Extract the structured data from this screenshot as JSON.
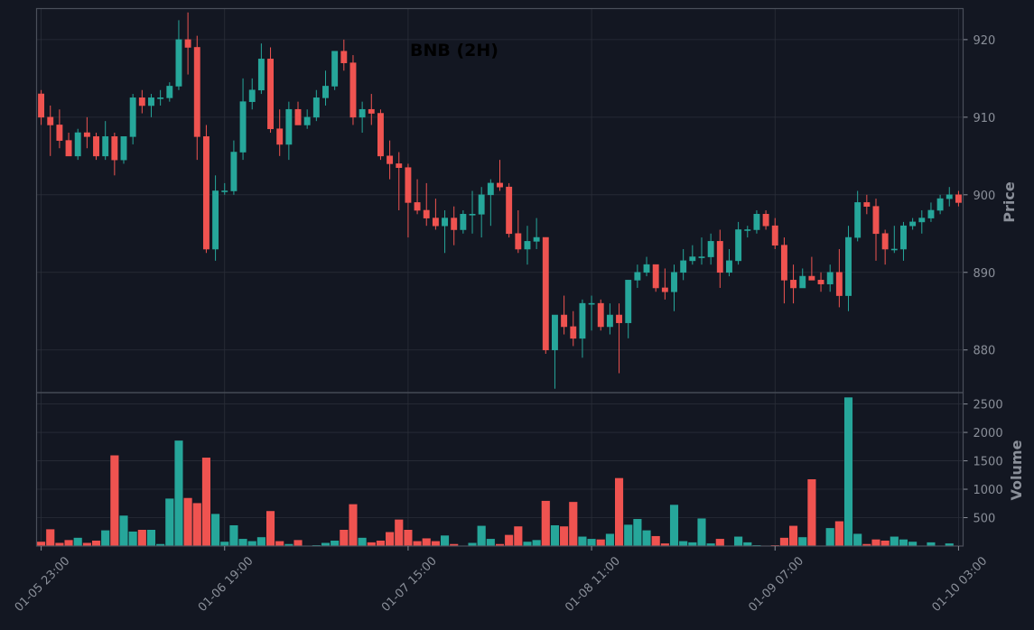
{
  "chart_data": [
    {
      "type": "candlestick",
      "title": "BNB (2H)",
      "ylabel": "Price",
      "ylim": [
        874.5,
        924
      ],
      "yticks": [
        880,
        890,
        900,
        910,
        920
      ],
      "x_range": [
        -0.5,
        100.5
      ],
      "xticks": [
        {
          "index": 0,
          "label": "01-05 23:00"
        },
        {
          "index": 20,
          "label": "01-06 19:00"
        },
        {
          "index": 40,
          "label": "01-07 15:00"
        },
        {
          "index": 60,
          "label": "01-08 11:00"
        },
        {
          "index": 80,
          "label": "01-09 07:00"
        },
        {
          "index": 100,
          "label": "01-10 03:00"
        }
      ],
      "colors": {
        "up": "#26a69a",
        "down": "#ef5350",
        "background": "#131722",
        "grid": "#2a2e39",
        "text": "#8a8f99"
      },
      "candles": [
        [
          913,
          913.5,
          909,
          910
        ],
        [
          910,
          911.5,
          905,
          909
        ],
        [
          909,
          911,
          906,
          907
        ],
        [
          907,
          908,
          905,
          905
        ],
        [
          905,
          908.5,
          904.5,
          908
        ],
        [
          908,
          910,
          906,
          907.5
        ],
        [
          907.5,
          908,
          904.5,
          905
        ],
        [
          905,
          909.5,
          904.5,
          907.5
        ],
        [
          907.5,
          908,
          902.5,
          904.5
        ],
        [
          904.5,
          907.5,
          904,
          907.5
        ],
        [
          907.5,
          913,
          906.5,
          912.5
        ],
        [
          912.5,
          913.5,
          910.5,
          911.5
        ],
        [
          911.5,
          913,
          910,
          912.5
        ],
        [
          912.5,
          913.5,
          911.5,
          912.5
        ],
        [
          912.5,
          914.5,
          912,
          914
        ],
        [
          914,
          922.5,
          913.5,
          920
        ],
        [
          920,
          923.5,
          915.5,
          919
        ],
        [
          919,
          920.5,
          904.5,
          907.5
        ],
        [
          907.5,
          909,
          892.5,
          893
        ],
        [
          893,
          902.5,
          891.5,
          900.5
        ],
        [
          900.5,
          901.5,
          900,
          900.5
        ],
        [
          900.5,
          907,
          900,
          905.5
        ],
        [
          905.5,
          915,
          904.5,
          912
        ],
        [
          912,
          915,
          911,
          913.5
        ],
        [
          913.5,
          919.5,
          913,
          917.5
        ],
        [
          917.5,
          919,
          908,
          908.5
        ],
        [
          908.5,
          911,
          905,
          906.5
        ],
        [
          906.5,
          912,
          904.5,
          911
        ],
        [
          911,
          912,
          909,
          909
        ],
        [
          909,
          911,
          908.5,
          910
        ],
        [
          910,
          913.5,
          909.5,
          912.5
        ],
        [
          912.5,
          916,
          911.5,
          914
        ],
        [
          914,
          918.5,
          913.5,
          918.5
        ],
        [
          918.5,
          920,
          916,
          917
        ],
        [
          917,
          918,
          909,
          910
        ],
        [
          910,
          912,
          908,
          911
        ],
        [
          911,
          913,
          909,
          910.5
        ],
        [
          910.5,
          911,
          904.5,
          905
        ],
        [
          905,
          907,
          902,
          904
        ],
        [
          904,
          905.5,
          898,
          903.5
        ],
        [
          903.5,
          904,
          894.5,
          899
        ],
        [
          899,
          902,
          897.5,
          898
        ],
        [
          898,
          901.5,
          896,
          897
        ],
        [
          897,
          899.5,
          895.5,
          896
        ],
        [
          896,
          898,
          892.5,
          897
        ],
        [
          897,
          898.5,
          893.5,
          895.5
        ],
        [
          895.5,
          898,
          895,
          897.5
        ],
        [
          897.5,
          900.5,
          895,
          897.5
        ],
        [
          897.5,
          901,
          894.5,
          900
        ],
        [
          900,
          902,
          896,
          901.5
        ],
        [
          901.5,
          904.5,
          900.5,
          901
        ],
        [
          901,
          901.5,
          894.5,
          895
        ],
        [
          895,
          898,
          892.5,
          893
        ],
        [
          893,
          896,
          891,
          894
        ],
        [
          894,
          897,
          893,
          894.5
        ],
        [
          894.5,
          894.5,
          879.5,
          880
        ],
        [
          880,
          884.5,
          875,
          884.5
        ],
        [
          884.5,
          887,
          882,
          883
        ],
        [
          883,
          885,
          880.5,
          881.5
        ],
        [
          881.5,
          886.5,
          879,
          886
        ],
        [
          886,
          887,
          882.5,
          886
        ],
        [
          886,
          886.5,
          882.5,
          883
        ],
        [
          883,
          886,
          882,
          884.5
        ],
        [
          884.5,
          886,
          877,
          883.5
        ],
        [
          883.5,
          889,
          881.5,
          889
        ],
        [
          889,
          891,
          888,
          890
        ],
        [
          890,
          892,
          889.5,
          891
        ],
        [
          891,
          891,
          887.5,
          888
        ],
        [
          888,
          890.5,
          886.5,
          887.5
        ],
        [
          887.5,
          891,
          885,
          890
        ],
        [
          890,
          893,
          889,
          891.5
        ],
        [
          891.5,
          893.5,
          891,
          892
        ],
        [
          892,
          894.5,
          891,
          892
        ],
        [
          892,
          895,
          891,
          894
        ],
        [
          894,
          895.5,
          888,
          890
        ],
        [
          890,
          893,
          889.5,
          891.5
        ],
        [
          891.5,
          896.5,
          891,
          895.5
        ],
        [
          895.5,
          896,
          894.5,
          895.5
        ],
        [
          895.5,
          898,
          895,
          897.5
        ],
        [
          897.5,
          898,
          895.5,
          896
        ],
        [
          896,
          897,
          893,
          893.5
        ],
        [
          893.5,
          894.5,
          886,
          889
        ],
        [
          889,
          891,
          886,
          888
        ],
        [
          888,
          890.5,
          888,
          889.5
        ],
        [
          889.5,
          892,
          889,
          889
        ],
        [
          889,
          890,
          887.5,
          888.5
        ],
        [
          888.5,
          891,
          887.5,
          890
        ],
        [
          890,
          893,
          885.5,
          887
        ],
        [
          887,
          896,
          885,
          894.5
        ],
        [
          894.5,
          900.5,
          894,
          899
        ],
        [
          899,
          900,
          897.5,
          898.5
        ],
        [
          898.5,
          899.5,
          891.5,
          895
        ],
        [
          895,
          895.5,
          891,
          893
        ],
        [
          893,
          896,
          892.5,
          893
        ],
        [
          893,
          896.5,
          891.5,
          896
        ],
        [
          896,
          897,
          895.5,
          896.5
        ],
        [
          896.5,
          898,
          895,
          897
        ],
        [
          897,
          899,
          896.5,
          898
        ],
        [
          898,
          900,
          897.5,
          899.5
        ],
        [
          899.5,
          901,
          898.5,
          900
        ],
        [
          900,
          900.5,
          898.5,
          899
        ]
      ]
    },
    {
      "type": "bar",
      "ylabel": "Volume",
      "ylim": [
        0,
        2700
      ],
      "yticks": [
        500,
        1000,
        1500,
        2000,
        2500
      ],
      "x_range": [
        -0.5,
        100.5
      ],
      "values": [
        80,
        300,
        60,
        110,
        150,
        60,
        100,
        280,
        1600,
        540,
        260,
        290,
        290,
        40,
        840,
        1860,
        850,
        760,
        1560,
        570,
        80,
        370,
        130,
        90,
        160,
        620,
        90,
        40,
        110,
        10,
        20,
        60,
        100,
        290,
        740,
        150,
        70,
        100,
        250,
        470,
        290,
        90,
        140,
        90,
        190,
        40,
        10,
        60,
        360,
        130,
        40,
        200,
        350,
        80,
        110,
        800,
        370,
        350,
        780,
        170,
        130,
        120,
        220,
        1200,
        380,
        480,
        280,
        180,
        50,
        730,
        90,
        70,
        490,
        50,
        130,
        10,
        170,
        70,
        20,
        10,
        20,
        150,
        360,
        160,
        1180,
        10,
        320,
        440,
        2620,
        220,
        40,
        120,
        100,
        170,
        120,
        80,
        10,
        70,
        10,
        50,
        10
      ]
    }
  ]
}
